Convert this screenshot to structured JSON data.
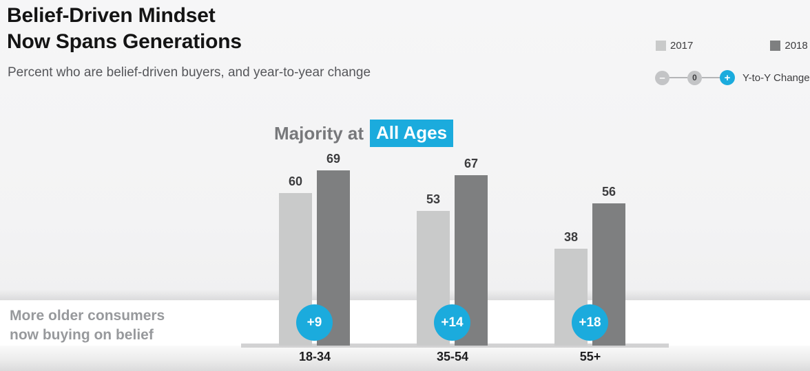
{
  "header": {
    "title_line1": "Belief-Driven Mindset",
    "title_line2": "Now Spans Generations",
    "subtitle": "Percent who are belief-driven buyers, and year-to-year change"
  },
  "legend": {
    "items": [
      {
        "label": "2017",
        "color": "#c9caca"
      },
      {
        "label": "2018",
        "color": "#7e7f80"
      }
    ],
    "yoy": {
      "minus": "–",
      "zero": "0",
      "plus": "+",
      "label": "Y-to-Y Change"
    }
  },
  "chart_data": {
    "type": "bar",
    "title": {
      "plain": "Majority at",
      "highlight": "All Ages"
    },
    "categories": [
      "18-34",
      "35-54",
      "55+"
    ],
    "series": [
      {
        "name": "2017",
        "color": "#c9caca",
        "values": [
          60,
          53,
          38
        ]
      },
      {
        "name": "2018",
        "color": "#7e7f80",
        "values": [
          69,
          67,
          56
        ]
      }
    ],
    "yoy_changes": [
      "+9",
      "+14",
      "+18"
    ],
    "ylim": [
      0,
      100
    ],
    "value_labels": true,
    "grid": false,
    "legend_position": "top-right",
    "accent_color": "#1babdd"
  },
  "annotation": {
    "line1": "More older consumers",
    "line2": "now buying on belief"
  }
}
